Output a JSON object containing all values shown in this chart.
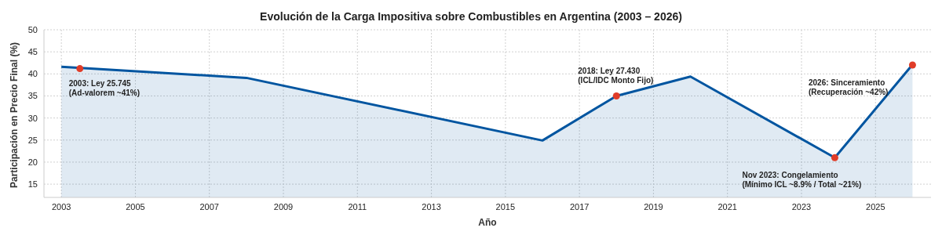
{
  "chart_data": {
    "type": "area",
    "title": "Evolución de la Carga Impositiva sobre Combustibles en Argentina (2003 – 2026)",
    "xlabel": "Año",
    "ylabel": "Participación en Precio Final (%)",
    "series": [
      {
        "color": "#0055a0",
        "x": [
          2003,
          2008,
          2016,
          2018,
          2020,
          2023.9,
          2026
        ],
        "values": [
          41.6,
          39.1,
          24.9,
          35,
          39.4,
          21,
          42.1
        ]
      },
      {
        "type": "scatter",
        "color": "#e03c28",
        "marker": "circle",
        "x": [
          2003.5,
          2018,
          2023.9,
          2026
        ],
        "values": [
          41.2,
          35,
          21,
          42
        ]
      }
    ],
    "annotations": [
      {
        "text": "2003: Ley 25.745\n(Ad-valorem ~41%)",
        "x": 2003.5,
        "y": 41.2
      },
      {
        "text": "2018: Ley 27.430\n(ICL/IDC Monto Fijo)",
        "x": 2018,
        "y": 35
      },
      {
        "text": "Nov 2023: Congelamiento\n(Mínimo ICL ~8.9% / Total ~21%)",
        "x": 2023.9,
        "y": 21
      },
      "2026: Sinceramiento\n(Recuperación ~42%)"
    ],
    "xlim": [
      2002.53,
      2026.5
    ],
    "xticks": [
      2003,
      2005,
      2007,
      2009,
      2011,
      2013,
      2015,
      2017,
      2019,
      2021,
      2023,
      2025
    ],
    "ylim": [
      12,
      50
    ],
    "yticks": [
      15,
      20,
      25,
      30,
      35,
      40,
      45,
      50
    ],
    "grid": true
  }
}
